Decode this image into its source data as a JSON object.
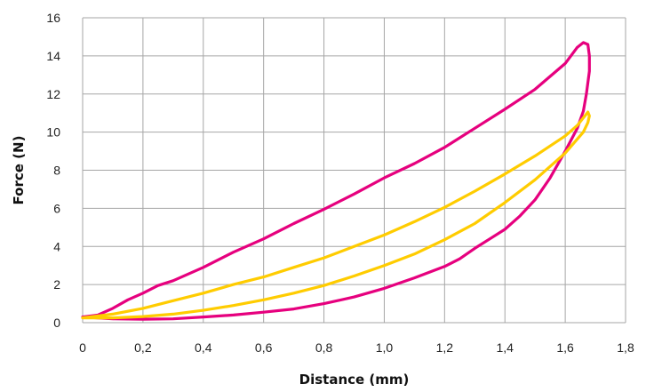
{
  "chart_data": {
    "type": "line",
    "title": "",
    "xlabel": "Distance (mm)",
    "ylabel": "Force (N)",
    "xlim": [
      0,
      1.8
    ],
    "ylim": [
      0,
      16
    ],
    "x_ticks": [
      "0",
      "0,2",
      "0,4",
      "0,6",
      "0,8",
      "1,0",
      "1,2",
      "1,4",
      "1,6",
      "1,8"
    ],
    "y_ticks": [
      "0",
      "2",
      "4",
      "6",
      "8",
      "10",
      "12",
      "14",
      "16"
    ],
    "grid": true,
    "legend": "none",
    "series": [
      {
        "color": "#e6007e",
        "points": [
          [
            0.0,
            0.3
          ],
          [
            0.05,
            0.4
          ],
          [
            0.1,
            0.75
          ],
          [
            0.15,
            1.2
          ],
          [
            0.2,
            1.55
          ],
          [
            0.25,
            1.95
          ],
          [
            0.3,
            2.2
          ],
          [
            0.4,
            2.9
          ],
          [
            0.5,
            3.7
          ],
          [
            0.6,
            4.4
          ],
          [
            0.7,
            5.2
          ],
          [
            0.8,
            5.95
          ],
          [
            0.9,
            6.75
          ],
          [
            1.0,
            7.6
          ],
          [
            1.1,
            8.35
          ],
          [
            1.2,
            9.2
          ],
          [
            1.3,
            10.2
          ],
          [
            1.4,
            11.2
          ],
          [
            1.5,
            12.25
          ],
          [
            1.6,
            13.6
          ],
          [
            1.64,
            14.45
          ],
          [
            1.66,
            14.7
          ],
          [
            1.675,
            14.6
          ],
          [
            1.68,
            14.0
          ],
          [
            1.68,
            13.2
          ],
          [
            1.67,
            12.0
          ],
          [
            1.66,
            11.1
          ],
          [
            1.64,
            10.2
          ],
          [
            1.6,
            9.0
          ],
          [
            1.55,
            7.6
          ],
          [
            1.5,
            6.45
          ],
          [
            1.45,
            5.6
          ],
          [
            1.4,
            4.9
          ],
          [
            1.35,
            4.4
          ],
          [
            1.3,
            3.9
          ],
          [
            1.25,
            3.35
          ],
          [
            1.2,
            2.95
          ],
          [
            1.1,
            2.35
          ],
          [
            1.0,
            1.8
          ],
          [
            0.9,
            1.35
          ],
          [
            0.8,
            1.0
          ],
          [
            0.7,
            0.72
          ],
          [
            0.6,
            0.55
          ],
          [
            0.5,
            0.4
          ],
          [
            0.4,
            0.3
          ],
          [
            0.3,
            0.2
          ],
          [
            0.2,
            0.18
          ],
          [
            0.1,
            0.2
          ],
          [
            0.0,
            0.3
          ]
        ]
      },
      {
        "color": "#ffcc00",
        "points": [
          [
            0.0,
            0.25
          ],
          [
            0.1,
            0.45
          ],
          [
            0.2,
            0.75
          ],
          [
            0.3,
            1.15
          ],
          [
            0.4,
            1.55
          ],
          [
            0.5,
            2.0
          ],
          [
            0.6,
            2.4
          ],
          [
            0.7,
            2.9
          ],
          [
            0.8,
            3.4
          ],
          [
            0.9,
            4.0
          ],
          [
            1.0,
            4.6
          ],
          [
            1.1,
            5.3
          ],
          [
            1.2,
            6.05
          ],
          [
            1.3,
            6.9
          ],
          [
            1.4,
            7.8
          ],
          [
            1.5,
            8.75
          ],
          [
            1.6,
            9.8
          ],
          [
            1.64,
            10.35
          ],
          [
            1.665,
            10.85
          ],
          [
            1.675,
            11.05
          ],
          [
            1.68,
            10.85
          ],
          [
            1.675,
            10.5
          ],
          [
            1.66,
            10.0
          ],
          [
            1.6,
            8.9
          ],
          [
            1.5,
            7.5
          ],
          [
            1.4,
            6.3
          ],
          [
            1.3,
            5.2
          ],
          [
            1.2,
            4.35
          ],
          [
            1.1,
            3.6
          ],
          [
            1.0,
            3.0
          ],
          [
            0.9,
            2.45
          ],
          [
            0.8,
            1.95
          ],
          [
            0.7,
            1.55
          ],
          [
            0.6,
            1.2
          ],
          [
            0.5,
            0.9
          ],
          [
            0.4,
            0.65
          ],
          [
            0.3,
            0.45
          ],
          [
            0.2,
            0.32
          ],
          [
            0.1,
            0.25
          ],
          [
            0.0,
            0.25
          ]
        ]
      }
    ]
  }
}
